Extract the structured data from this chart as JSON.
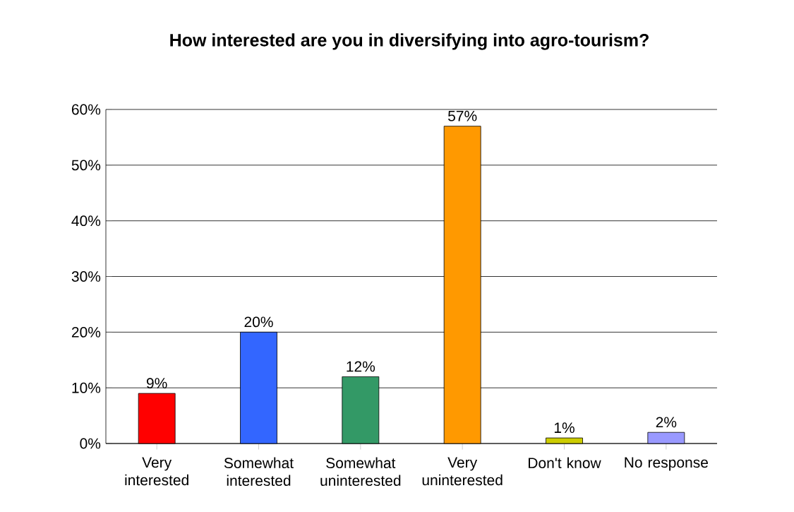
{
  "chart_data": {
    "type": "bar",
    "title": "How interested are you in diversifying into agro-tourism?",
    "categories": [
      "Very interested",
      "Somewhat interested",
      "Somewhat uninterested",
      "Very uninterested",
      "Don't know",
      "No response"
    ],
    "values": [
      9,
      20,
      12,
      57,
      1,
      2
    ],
    "colors": [
      "#ff0000",
      "#3366ff",
      "#339966",
      "#ff9900",
      "#cccc00",
      "#9999ff"
    ],
    "value_labels": [
      "9%",
      "20%",
      "12%",
      "57%",
      "1%",
      "2%"
    ],
    "ylim": [
      0,
      60
    ],
    "yticks": [
      {
        "value": 0,
        "label": "0%"
      },
      {
        "value": 10,
        "label": "10%"
      },
      {
        "value": 20,
        "label": "20%"
      },
      {
        "value": 30,
        "label": "30%"
      },
      {
        "value": 40,
        "label": "40%"
      },
      {
        "value": 50,
        "label": "50%"
      },
      {
        "value": 60,
        "label": "60%"
      }
    ],
    "grid": "y"
  }
}
